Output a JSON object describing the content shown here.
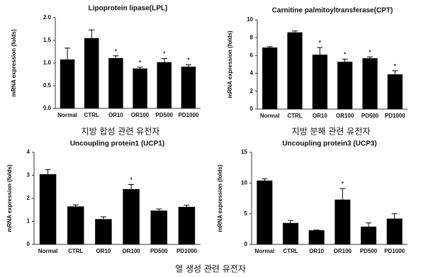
{
  "captions": [
    "지방 합성 관련 유전자",
    "지방 분해 관련 유전자",
    "열 생성 관련 유전자"
  ],
  "chart_data": [
    {
      "type": "bar",
      "title": "Lipoprotein lipase(LPL)",
      "y_label": "mRNA expression (folds)",
      "categories": [
        "Normal",
        "CTRL",
        "OR10",
        "OR100",
        "PD500",
        "PD1000"
      ],
      "values": [
        1.08,
        1.55,
        1.11,
        0.88,
        1.02,
        0.92
      ],
      "errors": [
        0.25,
        0.18,
        0.05,
        0.03,
        0.08,
        0.04
      ],
      "markers": [
        null,
        null,
        "*",
        "*",
        "*",
        "*"
      ],
      "color": "#000000",
      "ylim": [
        0,
        2
      ],
      "yticks": [
        {
          "value": 0,
          "label": "0.0"
        },
        {
          "value": 0.5,
          "label": "0.5"
        },
        {
          "value": 1,
          "label": "1.0"
        },
        {
          "value": 1.5,
          "label": "1.5"
        },
        {
          "value": 2,
          "label": "2.0"
        }
      ]
    },
    {
      "type": "bar",
      "title": "Carnitine palmitoyltransferase(CPT)",
      "y_label": "mRNA expression (folds)",
      "categories": [
        "Normal",
        "CTRL",
        "OR10",
        "OR100",
        "PD500",
        "PD1000"
      ],
      "values": [
        6.9,
        8.6,
        6.1,
        5.3,
        5.7,
        3.9
      ],
      "errors": [
        0.1,
        0.15,
        0.8,
        0.3,
        0.15,
        0.4
      ],
      "markers": [
        null,
        null,
        "*",
        "*",
        "*",
        "*"
      ],
      "color": "#000000",
      "ylim": [
        0,
        10
      ],
      "yticks": [
        0,
        2,
        4,
        6,
        8,
        10
      ]
    },
    {
      "type": "bar",
      "title": "Uncoupling protein1 (UCP1)",
      "y_label": "mRNA expression (folds)",
      "categories": [
        "Normal",
        "CTRL",
        "OR10",
        "OR100",
        "PD500",
        "PD1000"
      ],
      "values": [
        3.05,
        1.65,
        1.1,
        2.4,
        1.47,
        1.63
      ],
      "errors": [
        0.2,
        0.07,
        0.1,
        0.2,
        0.07,
        0.07
      ],
      "markers": [
        null,
        null,
        null,
        "*",
        null,
        null
      ],
      "color": "#000000",
      "ylim": [
        0,
        4
      ],
      "yticks": [
        0,
        1,
        2,
        3,
        4
      ]
    },
    {
      "type": "bar",
      "title": "Uncoupling protein3 (UCP3)",
      "y_label": "mRNA expression (folds)",
      "categories": [
        "Normal",
        "CTRL",
        "OR10",
        "OR100",
        "PD500",
        "PD1000"
      ],
      "values": [
        10.4,
        3.5,
        2.3,
        7.3,
        2.9,
        4.2
      ],
      "errors": [
        0.3,
        0.4,
        0.05,
        1.8,
        0.6,
        0.8
      ],
      "markers": [
        null,
        null,
        null,
        "*",
        null,
        null
      ],
      "color": "#000000",
      "ylim": [
        0,
        15
      ],
      "yticks": [
        0,
        5,
        10,
        15
      ]
    }
  ]
}
